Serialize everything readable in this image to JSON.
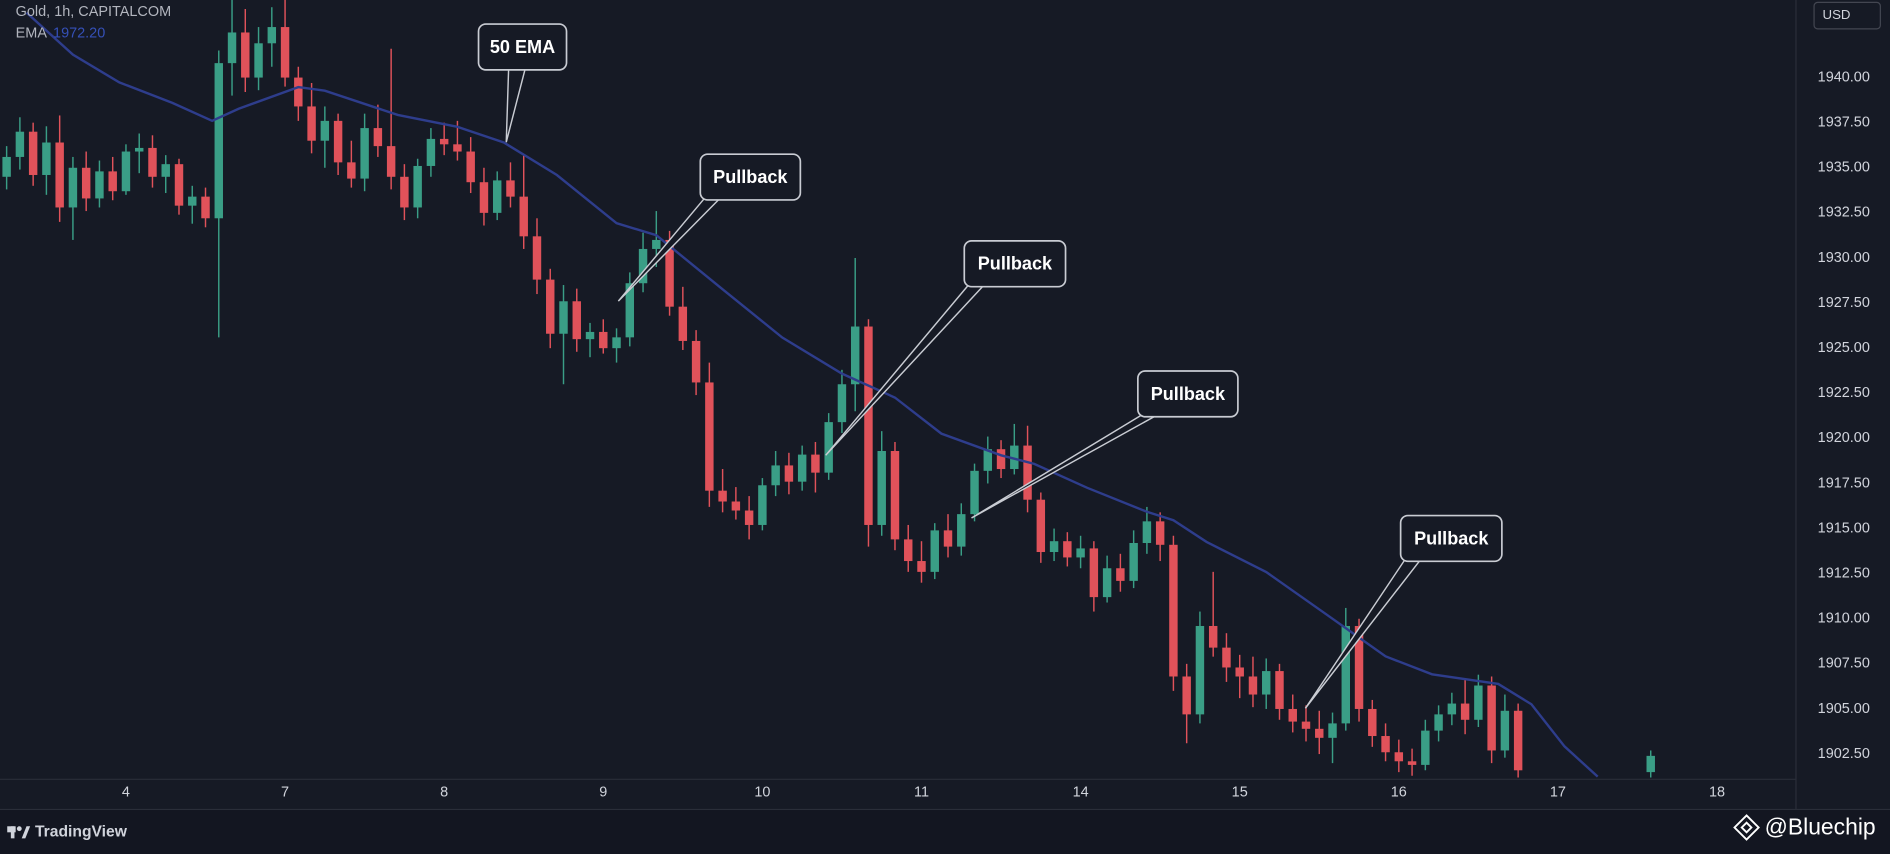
{
  "chart_data": {
    "type": "candlestick",
    "title": "Gold, 1h, CAPITALCOM",
    "indicator_value": {
      "value": 1972.2,
      "label": "1972.20"
    },
    "currency": "USD",
    "up_color": "#3a9e86",
    "down_color": "#e0525a",
    "grid": false,
    "x": [
      1,
      3,
      5,
      7,
      9,
      11,
      13,
      15,
      17,
      19,
      21,
      23,
      25,
      27,
      29,
      31,
      33,
      35,
      37,
      39,
      41,
      43,
      45,
      47,
      49,
      51,
      53,
      55,
      57,
      59,
      61,
      63,
      65,
      67,
      69,
      71,
      73,
      75,
      77,
      79,
      81,
      83,
      85,
      87,
      89,
      91,
      93,
      95,
      97,
      99,
      101,
      103,
      105,
      107,
      109,
      111,
      113,
      115,
      117,
      119,
      121,
      123,
      125,
      127,
      129,
      131,
      133,
      135,
      137,
      139,
      141,
      143,
      145,
      147,
      149,
      151,
      153,
      155,
      157,
      159,
      161,
      163,
      165,
      167,
      169,
      171,
      173,
      175,
      177,
      179,
      181,
      183,
      185,
      187,
      189,
      191,
      193,
      195,
      197,
      199,
      201,
      203,
      205,
      207,
      209,
      211,
      213,
      215,
      217,
      219,
      221,
      223,
      225,
      227,
      229,
      249
    ],
    "candles": [
      [
        1934.5,
        1936.2,
        1933.8,
        1935.6
      ],
      [
        1935.6,
        1937.8,
        1934.9,
        1937.0
      ],
      [
        1937.0,
        1937.5,
        1934.0,
        1934.6
      ],
      [
        1934.6,
        1937.3,
        1933.5,
        1936.4
      ],
      [
        1936.4,
        1937.9,
        1932.0,
        1932.8
      ],
      [
        1932.8,
        1935.6,
        1931.0,
        1935.0
      ],
      [
        1935.0,
        1935.9,
        1932.6,
        1933.3
      ],
      [
        1933.3,
        1935.4,
        1932.8,
        1934.8
      ],
      [
        1934.8,
        1935.6,
        1933.2,
        1933.7
      ],
      [
        1933.7,
        1936.3,
        1933.5,
        1935.9
      ],
      [
        1935.9,
        1936.9,
        1934.7,
        1936.1
      ],
      [
        1936.1,
        1936.8,
        1933.9,
        1934.5
      ],
      [
        1934.5,
        1935.7,
        1933.6,
        1935.2
      ],
      [
        1935.2,
        1935.5,
        1932.4,
        1932.9
      ],
      [
        1932.9,
        1934.0,
        1931.9,
        1933.4
      ],
      [
        1933.4,
        1933.9,
        1931.7,
        1932.2
      ],
      [
        1932.2,
        1941.5,
        1925.6,
        1940.8
      ],
      [
        1940.8,
        1944.3,
        1939.0,
        1942.5
      ],
      [
        1942.5,
        1943.8,
        1939.2,
        1940.0
      ],
      [
        1940.0,
        1942.8,
        1939.3,
        1941.9
      ],
      [
        1941.9,
        1943.9,
        1940.6,
        1942.8
      ],
      [
        1942.8,
        1944.3,
        1939.5,
        1940.0
      ],
      [
        1940.0,
        1940.6,
        1937.6,
        1938.4
      ],
      [
        1938.4,
        1939.7,
        1935.8,
        1936.5
      ],
      [
        1936.5,
        1938.4,
        1935.0,
        1937.6
      ],
      [
        1937.6,
        1938.0,
        1934.6,
        1935.3
      ],
      [
        1935.3,
        1936.5,
        1933.9,
        1934.4
      ],
      [
        1934.4,
        1938.0,
        1933.7,
        1937.2
      ],
      [
        1937.2,
        1938.5,
        1935.6,
        1936.2
      ],
      [
        1936.2,
        1941.6,
        1933.8,
        1934.5
      ],
      [
        1934.5,
        1935.2,
        1932.1,
        1932.8
      ],
      [
        1932.8,
        1935.5,
        1932.2,
        1935.1
      ],
      [
        1935.1,
        1937.2,
        1934.5,
        1936.6
      ],
      [
        1936.6,
        1937.5,
        1935.7,
        1936.3
      ],
      [
        1936.3,
        1937.6,
        1935.4,
        1935.9
      ],
      [
        1935.9,
        1936.7,
        1933.6,
        1934.2
      ],
      [
        1934.2,
        1935.0,
        1931.8,
        1932.5
      ],
      [
        1932.5,
        1934.8,
        1932.1,
        1934.3
      ],
      [
        1934.3,
        1935.3,
        1932.8,
        1933.4
      ],
      [
        1933.4,
        1935.7,
        1930.5,
        1931.2
      ],
      [
        1931.2,
        1932.2,
        1928.0,
        1928.8
      ],
      [
        1928.8,
        1929.4,
        1925.0,
        1925.8
      ],
      [
        1925.8,
        1928.5,
        1923.0,
        1927.6
      ],
      [
        1927.6,
        1928.3,
        1924.8,
        1925.5
      ],
      [
        1925.5,
        1926.4,
        1924.5,
        1925.9
      ],
      [
        1925.9,
        1926.6,
        1924.7,
        1925.0
      ],
      [
        1925.0,
        1926.1,
        1924.2,
        1925.6
      ],
      [
        1925.6,
        1929.2,
        1925.1,
        1928.6
      ],
      [
        1928.6,
        1931.4,
        1928.1,
        1930.5
      ],
      [
        1930.5,
        1932.6,
        1929.5,
        1931.0
      ],
      [
        1931.0,
        1931.5,
        1926.8,
        1927.3
      ],
      [
        1927.3,
        1928.4,
        1924.9,
        1925.4
      ],
      [
        1925.4,
        1926.0,
        1922.4,
        1923.1
      ],
      [
        1923.1,
        1924.2,
        1916.2,
        1917.1
      ],
      [
        1917.1,
        1918.3,
        1915.9,
        1916.5
      ],
      [
        1916.5,
        1917.3,
        1915.5,
        1916.0
      ],
      [
        1916.0,
        1916.8,
        1914.4,
        1915.2
      ],
      [
        1915.2,
        1917.8,
        1914.9,
        1917.4
      ],
      [
        1917.4,
        1919.3,
        1916.8,
        1918.5
      ],
      [
        1918.5,
        1919.2,
        1916.9,
        1917.6
      ],
      [
        1917.6,
        1919.6,
        1917.1,
        1919.1
      ],
      [
        1919.1,
        1919.8,
        1917.0,
        1918.1
      ],
      [
        1918.1,
        1921.4,
        1917.7,
        1920.9
      ],
      [
        1920.9,
        1923.8,
        1920.3,
        1923.0
      ],
      [
        1923.0,
        1930.0,
        1921.5,
        1926.2
      ],
      [
        1926.2,
        1926.6,
        1914.0,
        1915.2
      ],
      [
        1915.2,
        1920.4,
        1914.6,
        1919.3
      ],
      [
        1919.3,
        1919.8,
        1913.8,
        1914.4
      ],
      [
        1914.4,
        1915.2,
        1912.6,
        1913.2
      ],
      [
        1913.2,
        1914.3,
        1912.0,
        1912.6
      ],
      [
        1912.6,
        1915.3,
        1912.2,
        1914.9
      ],
      [
        1914.9,
        1915.8,
        1913.4,
        1914.0
      ],
      [
        1914.0,
        1916.4,
        1913.5,
        1915.8
      ],
      [
        1915.8,
        1918.6,
        1915.4,
        1918.2
      ],
      [
        1918.2,
        1920.1,
        1917.5,
        1919.4
      ],
      [
        1919.4,
        1919.9,
        1917.8,
        1918.3
      ],
      [
        1918.3,
        1920.8,
        1918.0,
        1919.6
      ],
      [
        1919.6,
        1920.7,
        1915.9,
        1916.6
      ],
      [
        1916.6,
        1917.0,
        1913.1,
        1913.7
      ],
      [
        1913.7,
        1915.0,
        1913.2,
        1914.3
      ],
      [
        1914.3,
        1914.8,
        1912.9,
        1913.4
      ],
      [
        1913.4,
        1914.6,
        1912.8,
        1913.9
      ],
      [
        1913.9,
        1914.3,
        1910.4,
        1911.2
      ],
      [
        1911.2,
        1913.5,
        1910.9,
        1912.8
      ],
      [
        1912.8,
        1913.6,
        1911.5,
        1912.1
      ],
      [
        1912.1,
        1914.9,
        1911.7,
        1914.2
      ],
      [
        1914.2,
        1916.2,
        1913.6,
        1915.4
      ],
      [
        1915.4,
        1915.9,
        1913.2,
        1914.1
      ],
      [
        1914.1,
        1914.6,
        1906.0,
        1906.8
      ],
      [
        1906.8,
        1907.5,
        1903.1,
        1904.7
      ],
      [
        1904.7,
        1910.4,
        1904.2,
        1909.6
      ],
      [
        1909.6,
        1912.6,
        1907.9,
        1908.4
      ],
      [
        1908.4,
        1909.2,
        1906.5,
        1907.3
      ],
      [
        1907.3,
        1908.0,
        1905.6,
        1906.8
      ],
      [
        1906.8,
        1907.9,
        1905.1,
        1905.8
      ],
      [
        1905.8,
        1907.8,
        1905.0,
        1907.1
      ],
      [
        1907.1,
        1907.5,
        1904.4,
        1905.0
      ],
      [
        1905.0,
        1905.8,
        1903.7,
        1904.3
      ],
      [
        1904.3,
        1905.2,
        1903.2,
        1903.9
      ],
      [
        1903.9,
        1904.9,
        1902.5,
        1903.4
      ],
      [
        1903.4,
        1904.8,
        1902.0,
        1904.2
      ],
      [
        1904.2,
        1910.6,
        1903.8,
        1909.6
      ],
      [
        1909.6,
        1910.0,
        1904.3,
        1905.0
      ],
      [
        1905.0,
        1905.5,
        1902.9,
        1903.5
      ],
      [
        1903.5,
        1904.2,
        1902.1,
        1902.6
      ],
      [
        1902.6,
        1903.3,
        1901.5,
        1902.1
      ],
      [
        1902.1,
        1902.8,
        1901.3,
        1901.9
      ],
      [
        1901.9,
        1904.4,
        1901.6,
        1903.8
      ],
      [
        1903.8,
        1905.2,
        1903.2,
        1904.7
      ],
      [
        1904.7,
        1905.9,
        1904.1,
        1905.3
      ],
      [
        1905.3,
        1906.7,
        1903.6,
        1904.4
      ],
      [
        1904.4,
        1906.9,
        1904.0,
        1906.3
      ],
      [
        1906.3,
        1906.8,
        1902.0,
        1902.7
      ],
      [
        1902.7,
        1905.8,
        1902.3,
        1904.9
      ],
      [
        1904.9,
        1905.3,
        1901.2,
        1901.6
      ],
      [
        1901.5,
        1902.7,
        1901.2,
        1902.4
      ]
    ],
    "series": [
      {
        "name": "EMA",
        "color": "#2e3d8c",
        "x": [
          4,
          11,
          18,
          26,
          32,
          36,
          45,
          49,
          60,
          69,
          76,
          84,
          93,
          99,
          109,
          118,
          127,
          135,
          142,
          151,
          156,
          164,
          173,
          177,
          182,
          191,
          200,
          209,
          216,
          226,
          231,
          236,
          241
        ],
        "values": [
          1943.6,
          1941.27,
          1939.73,
          1938.6,
          1937.6,
          1938.27,
          1939.47,
          1939.27,
          1937.93,
          1937.27,
          1936.4,
          1934.6,
          1931.93,
          1931.26,
          1928.26,
          1925.59,
          1923.59,
          1922.26,
          1920.26,
          1919.06,
          1918.59,
          1917.26,
          1915.93,
          1915.46,
          1914.26,
          1912.59,
          1910.26,
          1907.92,
          1906.92,
          1906.39,
          1905.26,
          1902.92,
          1901.25
        ]
      }
    ],
    "xlim": [
      0,
      270
    ],
    "ylim": [
      1901.1,
      1944.3
    ],
    "xticks": [
      {
        "value": 19,
        "label": "4"
      },
      {
        "value": 43,
        "label": "7"
      },
      {
        "value": 67,
        "label": "8"
      },
      {
        "value": 91,
        "label": "9"
      },
      {
        "value": 115,
        "label": "10"
      },
      {
        "value": 139,
        "label": "11"
      },
      {
        "value": 163,
        "label": "14"
      },
      {
        "value": 187,
        "label": "15"
      },
      {
        "value": 211,
        "label": "16"
      },
      {
        "value": 235,
        "label": "17"
      },
      {
        "value": 259,
        "label": "18"
      }
    ],
    "yticks": [
      {
        "value": 1902.5,
        "label": "1902.50"
      },
      {
        "value": 1905,
        "label": "1905.00"
      },
      {
        "value": 1907.5,
        "label": "1907.50"
      },
      {
        "value": 1910,
        "label": "1910.00"
      },
      {
        "value": 1912.5,
        "label": "1912.50"
      },
      {
        "value": 1915,
        "label": "1915.00"
      },
      {
        "value": 1917.5,
        "label": "1917.50"
      },
      {
        "value": 1920,
        "label": "1920.00"
      },
      {
        "value": 1922.5,
        "label": "1922.50"
      },
      {
        "value": 1925,
        "label": "1925.00"
      },
      {
        "value": 1927.5,
        "label": "1927.50"
      },
      {
        "value": 1930,
        "label": "1930.00"
      },
      {
        "value": 1932.5,
        "label": "1932.50"
      },
      {
        "value": 1935,
        "label": "1935.00"
      },
      {
        "value": 1937.5,
        "label": "1937.50"
      },
      {
        "value": 1940,
        "label": "1940.00"
      }
    ],
    "annotations": [
      "50 EMA",
      "Pullback",
      "Pullback",
      "Pullback",
      "Pullback"
    ],
    "watermark": "TradingView",
    "credit": "@Bluechip"
  }
}
